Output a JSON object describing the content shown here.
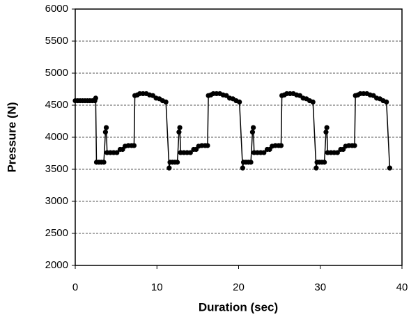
{
  "chart_data": {
    "type": "line",
    "color": "#000000",
    "marker": "circle",
    "grid": true,
    "xlabel": "Duration (sec)",
    "ylabel": "Pressure (N)",
    "xlim": [
      0,
      40
    ],
    "xticks": [
      0,
      10,
      20,
      30,
      40
    ],
    "ylim": [
      2000,
      6000
    ],
    "yticks": [
      2000,
      2500,
      3000,
      3500,
      4000,
      4500,
      5000,
      5500,
      6000
    ],
    "x": [
      0,
      0.3,
      0.6,
      0.9,
      1.2,
      1.5,
      1.8,
      2.1,
      2.4,
      2.5,
      2.6,
      2.9,
      3.2,
      3.5,
      3.7,
      3.8,
      3.9,
      4.3,
      4.7,
      5.1,
      5.5,
      5.8,
      6.1,
      6.5,
      6.9,
      7.2,
      7.3,
      7.6,
      7.9,
      8.3,
      8.7,
      9.1,
      9.5,
      9.9,
      10.3,
      10.7,
      11.1,
      11.5,
      11.6,
      11.9,
      12.2,
      12.5,
      12.7,
      12.8,
      12.9,
      13.3,
      13.7,
      14.1,
      14.5,
      14.8,
      15.1,
      15.5,
      15.9,
      16.2,
      16.3,
      16.6,
      16.9,
      17.3,
      17.7,
      18.1,
      18.5,
      18.9,
      19.3,
      19.7,
      20.1,
      20.5,
      20.6,
      20.9,
      21.2,
      21.5,
      21.7,
      21.8,
      21.9,
      22.3,
      22.7,
      23.1,
      23.5,
      23.8,
      24.1,
      24.5,
      24.9,
      25.2,
      25.3,
      25.6,
      25.9,
      26.3,
      26.7,
      27.1,
      27.5,
      27.9,
      28.3,
      28.7,
      29.1,
      29.5,
      29.6,
      29.9,
      30.2,
      30.5,
      30.7,
      30.8,
      30.9,
      31.3,
      31.7,
      32.1,
      32.5,
      32.8,
      33.1,
      33.5,
      33.9,
      34.2,
      34.3,
      34.6,
      34.9,
      35.3,
      35.7,
      36.1,
      36.5,
      36.9,
      37.3,
      37.7,
      38.1,
      38.5
    ],
    "values": [
      4570,
      4570,
      4570,
      4570,
      4570,
      4570,
      4570,
      4570,
      4570,
      4610,
      3610,
      3610,
      3610,
      3610,
      4080,
      4150,
      3760,
      3760,
      3760,
      3760,
      3810,
      3810,
      3860,
      3870,
      3870,
      3870,
      4650,
      4660,
      4680,
      4680,
      4680,
      4660,
      4650,
      4610,
      4600,
      4570,
      4550,
      3520,
      3610,
      3610,
      3610,
      3610,
      4080,
      4150,
      3760,
      3760,
      3760,
      3760,
      3810,
      3810,
      3860,
      3870,
      3870,
      3870,
      4650,
      4660,
      4680,
      4680,
      4680,
      4660,
      4650,
      4610,
      4600,
      4570,
      4550,
      3520,
      3610,
      3610,
      3610,
      3610,
      4080,
      4150,
      3760,
      3760,
      3760,
      3760,
      3810,
      3810,
      3860,
      3870,
      3870,
      3870,
      4650,
      4660,
      4680,
      4680,
      4680,
      4660,
      4650,
      4610,
      4600,
      4570,
      4550,
      3520,
      3610,
      3610,
      3610,
      3610,
      4080,
      4150,
      3760,
      3760,
      3760,
      3760,
      3810,
      3810,
      3860,
      3870,
      3870,
      3870,
      4650,
      4660,
      4680,
      4680,
      4680,
      4660,
      4650,
      4610,
      4600,
      4570,
      4550,
      3520
    ]
  }
}
